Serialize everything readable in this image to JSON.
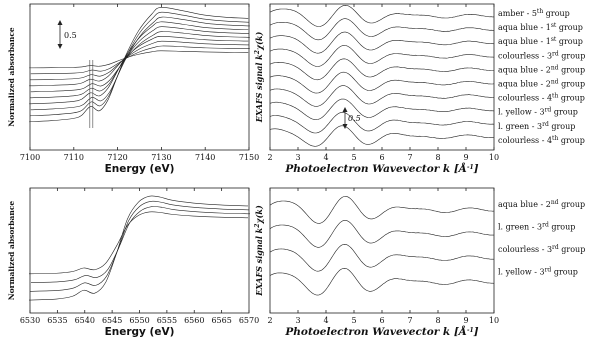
{
  "chart_data": [
    {
      "id": "tl",
      "type": "line",
      "xlabel": "Energy (eV)",
      "ylabel": "Normalized absorbance",
      "xlim": [
        7100,
        7150
      ],
      "xticks": [
        7100,
        7110,
        7120,
        7130,
        7140,
        7150
      ],
      "edge_energy": 7118,
      "pre_edge_energy": 7114,
      "step_annotation": "0.5",
      "series_count": 10,
      "x": [
        7100,
        7105,
        7110,
        7112,
        7114,
        7116,
        7118,
        7120,
        7122,
        7125,
        7128,
        7130,
        7135,
        7140,
        7145,
        7150
      ],
      "values": [
        0.02,
        0.03,
        0.05,
        0.08,
        0.16,
        0.12,
        0.22,
        0.42,
        0.62,
        0.85,
        1.0,
        1.06,
        1.03,
        0.99,
        0.97,
        0.96
      ]
    },
    {
      "id": "tr",
      "type": "line",
      "xlabel_prefix": "Photoelectron Wavevector k [",
      "xlabel_unit": "Å",
      "xlabel_sup": "-1",
      "xlabel_suffix": "]",
      "ylabel_prefix": "EXAFS signal k",
      "ylabel_sup": "2",
      "ylabel_suffix": "χ(k)",
      "xlim": [
        2,
        10
      ],
      "xticks": [
        2,
        3,
        4,
        5,
        6,
        7,
        8,
        9,
        10
      ],
      "step_annotation": "0.5",
      "legend_placement": "right",
      "series": [
        {
          "name": "amber - 5",
          "sup": "th",
          "group": " group"
        },
        {
          "name": "aqua blue - 1",
          "sup": "st",
          "group": " group"
        },
        {
          "name": "aqua blue - 1",
          "sup": "st",
          "group": " group"
        },
        {
          "name": "colourless - 3",
          "sup": "rd",
          "group": " group"
        },
        {
          "name": "aqua blue - 2",
          "sup": "nd",
          "group": " group"
        },
        {
          "name": "aqua blue - 2",
          "sup": "nd",
          "group": " group"
        },
        {
          "name": "colourless - 4",
          "sup": "th",
          "group": " group"
        },
        {
          "name": "l. yellow - 3",
          "sup": "rd",
          "group": " group"
        },
        {
          "name": "l. green - 3",
          "sup": "rd",
          "group": " group"
        },
        {
          "name": "colourless - 4",
          "sup": "th",
          "group": " group"
        }
      ]
    },
    {
      "id": "bl",
      "type": "line",
      "xlabel": "Energy (eV)",
      "ylabel": "Normalized absorbance",
      "xlim": [
        6530,
        6570
      ],
      "xticks": [
        6530,
        6535,
        6540,
        6545,
        6550,
        6555,
        6560,
        6565,
        6570
      ],
      "edge_energy": 6547,
      "pre_edge_energy": 6540,
      "series_count": 4,
      "x": [
        6530,
        6535,
        6538,
        6540,
        6542,
        6544,
        6546,
        6548,
        6550,
        6552,
        6554,
        6556,
        6560,
        6565,
        6570
      ],
      "values": [
        0.02,
        0.03,
        0.06,
        0.12,
        0.09,
        0.2,
        0.5,
        0.85,
        1.02,
        1.08,
        1.07,
        1.04,
        1.01,
        0.99,
        0.98
      ]
    },
    {
      "id": "br",
      "type": "line",
      "xlabel_prefix": "Photoelectron Wavevector k [",
      "xlabel_unit": "Å",
      "xlabel_sup": "-1",
      "xlabel_suffix": "]",
      "ylabel_prefix": "EXAFS signal k",
      "ylabel_sup": "2",
      "ylabel_suffix": "χ(k)",
      "xlim": [
        2,
        10
      ],
      "xticks": [
        2,
        3,
        4,
        5,
        6,
        7,
        8,
        9,
        10
      ],
      "legend_placement": "right",
      "series": [
        {
          "name": "aqua blue - 2",
          "sup": "nd",
          "group": " group"
        },
        {
          "name": "l. green - 3",
          "sup": "rd",
          "group": " group"
        },
        {
          "name": "colourless - 3",
          "sup": "rd",
          "group": " group"
        },
        {
          "name": "l. yellow - 3",
          "sup": "rd",
          "group": " group"
        }
      ]
    }
  ]
}
